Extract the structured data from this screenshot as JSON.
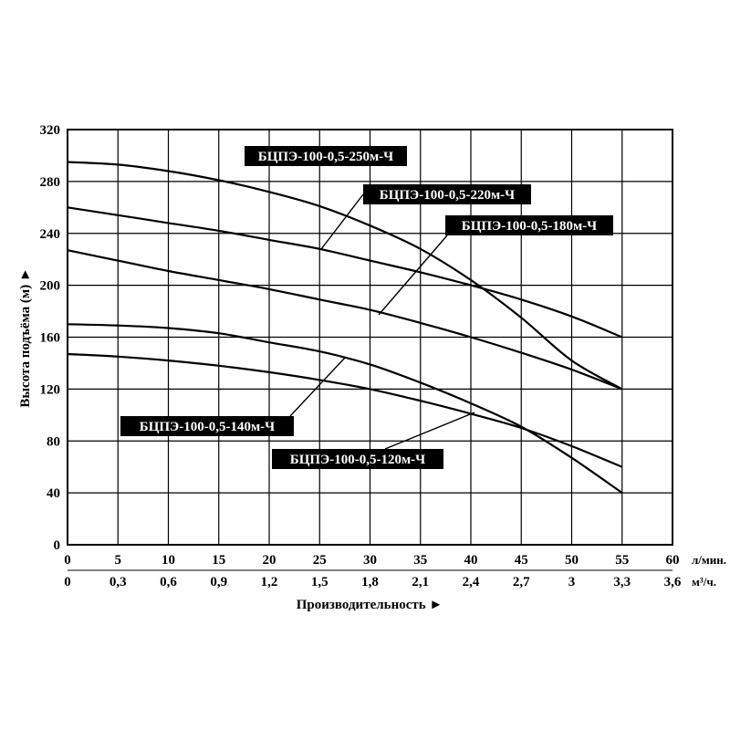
{
  "chart_data": {
    "type": "line",
    "ylabel": "Высота подъёма (м) ►",
    "xlabel": "Производительность ►",
    "x_unit_primary": "л/мин.",
    "x_unit_secondary": "м³/ч.",
    "xlim": [
      0,
      60
    ],
    "ylim": [
      0,
      320
    ],
    "grid": true,
    "x_ticks": [
      "0",
      "5",
      "10",
      "15",
      "20",
      "25",
      "30",
      "35",
      "40",
      "45",
      "50",
      "55",
      "60"
    ],
    "x_ticks_secondary": [
      "0",
      "0,3",
      "0,6",
      "0,9",
      "1,2",
      "1,5",
      "1,8",
      "2,1",
      "2,4",
      "2,7",
      "3",
      "3,3",
      "3,6"
    ],
    "y_ticks": [
      "0",
      "40",
      "80",
      "120",
      "160",
      "200",
      "240",
      "280",
      "320"
    ],
    "series": [
      {
        "name": "БЦПЭ-100-0,5-250м-Ч",
        "x": [
          0,
          5,
          10,
          15,
          20,
          25,
          30,
          35,
          40,
          45,
          50,
          55
        ],
        "y": [
          295,
          293,
          288,
          281,
          272,
          261,
          246,
          228,
          204,
          175,
          142,
          120
        ]
      },
      {
        "name": "БЦПЭ-100-0,5-220м-Ч",
        "x": [
          0,
          5,
          10,
          15,
          20,
          25,
          30,
          35,
          40,
          45,
          50,
          55
        ],
        "y": [
          260,
          254,
          248,
          242,
          235,
          228,
          219,
          210,
          200,
          189,
          176,
          160
        ]
      },
      {
        "name": "БЦПЭ-100-0,5-180м-Ч",
        "x": [
          0,
          5,
          10,
          15,
          20,
          25,
          30,
          35,
          40,
          45,
          50,
          55
        ],
        "y": [
          227,
          219,
          211,
          204,
          197,
          189,
          181,
          171,
          160,
          148,
          135,
          120
        ]
      },
      {
        "name": "БЦПЭ-100-0,5-140м-Ч",
        "x": [
          0,
          5,
          10,
          15,
          20,
          25,
          30,
          35,
          40,
          45,
          50,
          55
        ],
        "y": [
          170,
          169,
          167,
          163,
          156,
          149,
          139,
          125,
          109,
          91,
          67,
          40
        ]
      },
      {
        "name": "БЦПЭ-100-0,5-120м-Ч",
        "x": [
          0,
          5,
          10,
          15,
          20,
          25,
          30,
          35,
          40,
          45,
          50,
          55
        ],
        "y": [
          147,
          145,
          142,
          138,
          133,
          127,
          120,
          111,
          101,
          90,
          76,
          60
        ]
      }
    ]
  }
}
